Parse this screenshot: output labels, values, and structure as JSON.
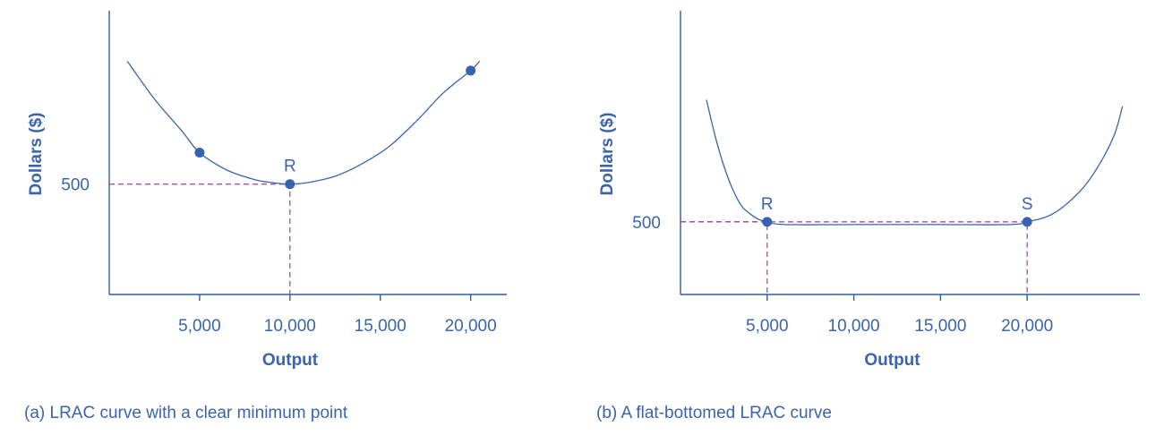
{
  "chart_data": [
    {
      "type": "line",
      "caption": "(a) LRAC curve with a clear minimum point",
      "xlabel": "Output",
      "ylabel": "Dollars ($)",
      "xticks": [
        "5,000",
        "10,000",
        "15,000",
        "20,000"
      ],
      "xtick_values": [
        5000,
        10000,
        15000,
        20000
      ],
      "yticks": [
        "500"
      ],
      "ytick_values": [
        500
      ],
      "xlim": [
        0,
        22000
      ],
      "ylim": [
        150,
        1050
      ],
      "curve": {
        "x": [
          1000,
          2500,
          4000,
          5000,
          6500,
          8000,
          9000,
          10000,
          11000,
          12500,
          14000,
          15500,
          17000,
          18500,
          20000,
          20500
        ],
        "y": [
          890,
          770,
          670,
          600,
          545,
          515,
          505,
          500,
          505,
          525,
          565,
          620,
          700,
          790,
          860,
          890
        ]
      },
      "points": [
        {
          "label": "",
          "x": 5000,
          "y": 600
        },
        {
          "label": "R",
          "x": 10000,
          "y": 500
        },
        {
          "label": "",
          "x": 20000,
          "y": 860
        }
      ],
      "guides": [
        {
          "x": 10000,
          "y": 500
        }
      ]
    },
    {
      "type": "line",
      "caption": "(b) A flat-bottomed LRAC curve",
      "xlabel": "Output",
      "ylabel": "Dollars ($)",
      "xticks": [
        "5,000",
        "10,000",
        "15,000",
        "20,000"
      ],
      "xtick_values": [
        5000,
        10000,
        15000,
        20000
      ],
      "yticks": [
        "500"
      ],
      "ytick_values": [
        500
      ],
      "xlim": [
        0,
        26500
      ],
      "ylim": [
        280,
        1140
      ],
      "curve": {
        "x": [
          1500,
          2000,
          2500,
          3000,
          3500,
          4000,
          4500,
          5000,
          6000,
          10000,
          15000,
          19000,
          20000,
          21500,
          23000,
          24000,
          25000,
          25500
        ],
        "y": [
          870,
          760,
          670,
          600,
          550,
          525,
          508,
          500,
          492,
          492,
          492,
          492,
          500,
          525,
          590,
          660,
          760,
          850
        ]
      },
      "points": [
        {
          "label": "R",
          "x": 5000,
          "y": 500
        },
        {
          "label": "S",
          "x": 20000,
          "y": 500
        }
      ],
      "guides": [
        {
          "x": 5000,
          "y": 500
        },
        {
          "x": 20000,
          "y": 500
        }
      ]
    }
  ]
}
